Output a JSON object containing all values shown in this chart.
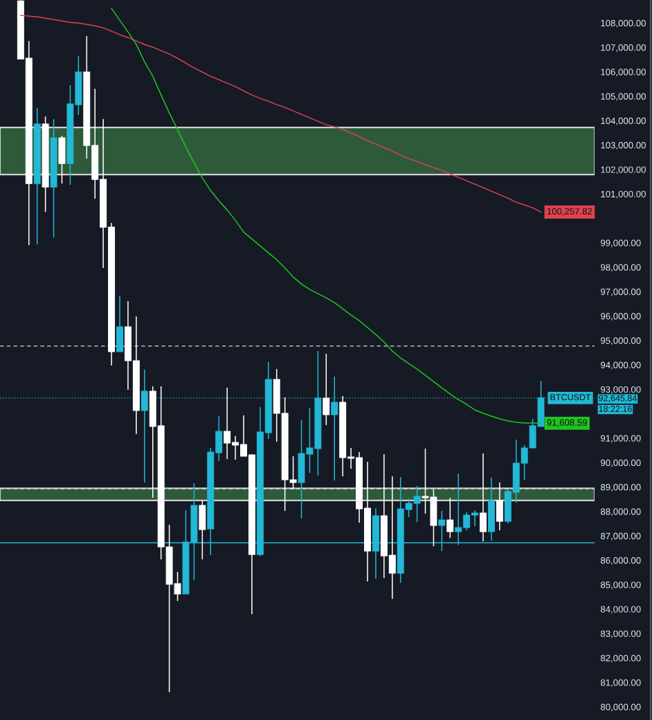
{
  "chart_data": {
    "type": "candlestick",
    "categories": [
      null,
      null,
      null,
      null,
      null,
      null,
      null,
      null,
      null,
      null,
      null,
      null,
      null,
      null,
      null,
      null,
      null,
      null,
      null,
      null,
      null,
      null,
      null,
      null,
      null,
      null,
      null,
      null,
      null,
      null,
      null,
      null,
      null,
      null,
      null,
      null,
      null,
      null,
      null,
      null,
      null,
      null,
      null,
      null,
      null,
      null,
      null,
      null,
      null,
      null,
      null,
      null,
      null,
      null,
      null,
      null,
      null,
      null,
      null,
      null,
      null,
      null,
      null,
      null
    ],
    "ohlc": [
      [
        108900,
        108930,
        106526,
        106526
      ],
      [
        106554,
        107263,
        98903,
        101425
      ],
      [
        101425,
        104514,
        98931,
        103862
      ],
      [
        103862,
        104174,
        100263,
        101283
      ],
      [
        101283,
        104061,
        99215,
        103295
      ],
      [
        103295,
        103380,
        101425,
        102247
      ],
      [
        102247,
        105449,
        101368,
        104684
      ],
      [
        104656,
        106640,
        104231,
        105988
      ],
      [
        105988,
        107462,
        102445,
        102984
      ],
      [
        102984,
        105307,
        100802,
        101595
      ],
      [
        101595,
        104061,
        97968,
        99640
      ],
      [
        99640,
        99810,
        93972,
        94539
      ],
      [
        94539,
        96806,
        94539,
        95559
      ],
      [
        95559,
        96607,
        92980,
        94170
      ],
      [
        94170,
        95984,
        91166,
        92130
      ],
      [
        92130,
        93802,
        89182,
        92923
      ],
      [
        92923,
        93122,
        88559,
        91478
      ],
      [
        91506,
        93122,
        86037,
        86547
      ],
      [
        86547,
        87453,
        80600,
        85016
      ],
      [
        85044,
        85526,
        84336,
        84620
      ],
      [
        84620,
        88048,
        84620,
        86745
      ],
      [
        86745,
        89154,
        85181,
        88247
      ],
      [
        88247,
        88445,
        86037,
        87255
      ],
      [
        87283,
        90599,
        86207,
        90429
      ],
      [
        90400,
        91903,
        90060,
        91279
      ],
      [
        91279,
        93065,
        90146,
        90797
      ],
      [
        90825,
        91081,
        90117,
        90713
      ],
      [
        90741,
        91931,
        90259,
        90259
      ],
      [
        90316,
        90344,
        83797,
        86235
      ],
      [
        86235,
        92271,
        86178,
        91251
      ],
      [
        91222,
        94113,
        90968,
        93405
      ],
      [
        93405,
        93830,
        90854,
        92016
      ],
      [
        92016,
        92668,
        88020,
        89296
      ],
      [
        89296,
        90259,
        88898,
        89182
      ],
      [
        89182,
        91733,
        87709,
        90372
      ],
      [
        90344,
        92243,
        89579,
        90599
      ],
      [
        90570,
        94567,
        89466,
        92640
      ],
      [
        92640,
        94453,
        91534,
        91960
      ],
      [
        91960,
        93518,
        89267,
        92470
      ],
      [
        92470,
        92725,
        89437,
        90203
      ],
      [
        90231,
        90599,
        89749,
        90174
      ],
      [
        90203,
        90429,
        87538,
        88105
      ],
      [
        88133,
        90032,
        85130,
        86377
      ],
      [
        86377,
        88133,
        85243,
        87822
      ],
      [
        87822,
        90344,
        85271,
        86178
      ],
      [
        86207,
        89437,
        84421,
        85470
      ],
      [
        85470,
        89409,
        85073,
        88105
      ],
      [
        88077,
        88530,
        87765,
        88332
      ],
      [
        88332,
        89041,
        87567,
        88616
      ],
      [
        88616,
        90571,
        87907,
        88559
      ],
      [
        88588,
        88898,
        86575,
        87425
      ],
      [
        87425,
        88020,
        86377,
        87652
      ],
      [
        87652,
        88559,
        86915,
        87170
      ],
      [
        87170,
        89551,
        86632,
        87340
      ],
      [
        87340,
        87963,
        87227,
        87850
      ],
      [
        87850,
        88048,
        87397,
        87935
      ],
      [
        87935,
        90372,
        86773,
        87170
      ],
      [
        87170,
        89381,
        86802,
        88445
      ],
      [
        88445,
        89183,
        87227,
        87595
      ],
      [
        87595,
        88899,
        87510,
        88814
      ],
      [
        88786,
        90939,
        88360,
        89976
      ],
      [
        89976,
        90712,
        89296,
        90599
      ],
      [
        90599,
        91790,
        90599,
        91506
      ],
      [
        91478,
        93348,
        91478,
        92645.84
      ]
    ],
    "colors": [
      "#ffffff",
      "#ffffff",
      "#22b8d6",
      "#ffffff",
      "#22b8d6",
      "#ffffff",
      "#22b8d6",
      "#22b8d6",
      "#ffffff",
      "#ffffff",
      "#ffffff",
      "#ffffff",
      "#22b8d6",
      "#ffffff",
      "#ffffff",
      "#22b8d6",
      "#ffffff",
      "#ffffff",
      "#ffffff",
      "#ffffff",
      "#22b8d6",
      "#22b8d6",
      "#ffffff",
      "#22b8d6",
      "#22b8d6",
      "#ffffff",
      "#ffffff",
      "#ffffff",
      "#ffffff",
      "#22b8d6",
      "#22b8d6",
      "#ffffff",
      "#ffffff",
      "#ffffff",
      "#22b8d6",
      "#22b8d6",
      "#22b8d6",
      "#ffffff",
      "#22b8d6",
      "#ffffff",
      "#ffffff",
      "#ffffff",
      "#ffffff",
      "#22b8d6",
      "#ffffff",
      "#ffffff",
      "#22b8d6",
      "#22b8d6",
      "#22b8d6",
      "#ffffff",
      "#ffffff",
      "#22b8d6",
      "#ffffff",
      "#22b8d6",
      "#22b8d6",
      "#22b8d6",
      "#ffffff",
      "#22b8d6",
      "#ffffff",
      "#22b8d6",
      "#22b8d6",
      "#22b8d6",
      "#22b8d6",
      "#22b8d6"
    ],
    "series": [
      {
        "type": "line",
        "color": "#e0434f",
        "values": [
          108312,
          108283,
          108255,
          108198,
          108142,
          108085,
          108028,
          108000,
          107943,
          107887,
          107802,
          107660,
          107518,
          107405,
          107263,
          107121,
          107008,
          106866,
          106725,
          106555,
          106356,
          106158,
          105988,
          105818,
          105676,
          105534,
          105393,
          105223,
          105052,
          104911,
          104798,
          104656,
          104543,
          104401,
          104259,
          104117,
          103976,
          103834,
          103749,
          103636,
          103494,
          103352,
          103182,
          103040,
          102899,
          102757,
          102587,
          102445,
          102332,
          102190,
          102077,
          101964,
          101822,
          101680,
          101538,
          101397,
          101255,
          101113,
          100972,
          100830,
          100660,
          100547,
          100433,
          100257.82
        ],
        "value_labels": [
          null,
          null,
          null,
          null,
          null,
          null,
          null,
          null,
          null,
          null,
          null,
          null,
          null,
          null,
          null,
          null,
          null,
          null,
          null,
          null,
          null,
          null,
          null,
          null,
          null,
          null,
          null,
          null,
          null,
          null,
          null,
          null,
          null,
          null,
          null,
          null,
          null,
          null,
          null,
          null,
          null,
          null,
          null,
          null,
          null,
          null,
          null,
          null,
          null,
          null,
          null,
          null,
          null,
          null,
          null,
          null,
          null,
          null,
          null,
          null,
          null,
          null,
          null,
          "100,257.82"
        ]
      },
      {
        "type": "line",
        "color": "#1fc41f",
        "values": [
          null,
          null,
          null,
          null,
          null,
          null,
          null,
          null,
          null,
          null,
          null,
          108595,
          108113,
          107632,
          107121,
          106413,
          105818,
          105052,
          104316,
          103636,
          102927,
          102275,
          101652,
          101142,
          100717,
          100348,
          99923,
          99441,
          99158,
          98874,
          98591,
          98308,
          97968,
          97600,
          97316,
          97089,
          96919,
          96749,
          96551,
          96296,
          96041,
          95814,
          95531,
          95247,
          94936,
          94567,
          94284,
          94057,
          93830,
          93575,
          93320,
          93065,
          92810,
          92583,
          92385,
          92158,
          92016,
          91903,
          91790,
          91705,
          91648,
          91620,
          91620,
          91608.59
        ],
        "value_labels": [
          null,
          null,
          null,
          null,
          null,
          null,
          null,
          null,
          null,
          null,
          null,
          null,
          null,
          null,
          null,
          null,
          null,
          null,
          null,
          null,
          null,
          null,
          null,
          null,
          null,
          null,
          null,
          null,
          null,
          null,
          null,
          null,
          null,
          null,
          null,
          null,
          null,
          null,
          null,
          null,
          null,
          null,
          null,
          null,
          null,
          null,
          null,
          null,
          null,
          null,
          null,
          null,
          null,
          null,
          null,
          null,
          null,
          null,
          null,
          null,
          null,
          null,
          null,
          "91,608.59"
        ]
      }
    ],
    "ylim": [
      79460,
      108940
    ],
    "yticks": [
      {
        "value": 80000,
        "label": "80,000.00"
      },
      {
        "value": 81000,
        "label": "81,000.00"
      },
      {
        "value": 82000,
        "label": "82,000.00"
      },
      {
        "value": 83000,
        "label": "83,000.00"
      },
      {
        "value": 84000,
        "label": "84,000.00"
      },
      {
        "value": 85000,
        "label": "85,000.00"
      },
      {
        "value": 86000,
        "label": "86,000.00"
      },
      {
        "value": 87000,
        "label": "87,000.00"
      },
      {
        "value": 88000,
        "label": "88,000.00"
      },
      {
        "value": 89000,
        "label": "89,000.00"
      },
      {
        "value": 90000,
        "label": "90,000.00"
      },
      {
        "value": 91000,
        "label": "91,000.00"
      },
      {
        "value": 93000,
        "label": "93,000.00"
      },
      {
        "value": 94000,
        "label": "94,000.00"
      },
      {
        "value": 95000,
        "label": "95,000.00"
      },
      {
        "value": 96000,
        "label": "96,000.00"
      },
      {
        "value": 97000,
        "label": "97,000.00"
      },
      {
        "value": 98000,
        "label": "98,000.00"
      },
      {
        "value": 99000,
        "label": "99,000.00"
      },
      {
        "value": 101000,
        "label": "101,000.00"
      },
      {
        "value": 102000,
        "label": "102,000.00"
      },
      {
        "value": 103000,
        "label": "103,000.00"
      },
      {
        "value": 104000,
        "label": "104,000.00"
      },
      {
        "value": 105000,
        "label": "105,000.00"
      },
      {
        "value": 106000,
        "label": "106,000.00"
      },
      {
        "value": 107000,
        "label": "107,000.00"
      },
      {
        "value": 108000,
        "label": "108,000.00"
      }
    ],
    "tick_labels": "y",
    "bands": [
      {
        "axis": "y",
        "from": 101794,
        "to": 103721,
        "color": "#2e5a3a"
      },
      {
        "axis": "y",
        "from": 88450,
        "to": 88950,
        "color": "#2e5a3a"
      }
    ],
    "ref_lines": [
      {
        "axis": "y",
        "value": 94770,
        "color": "#d8d8d8",
        "line_style": "dashed"
      },
      {
        "axis": "y",
        "value": 88927,
        "color": "#d8d8d8",
        "line_style": "dashed"
      },
      {
        "axis": "y",
        "value": 86717,
        "color": "#22b8d6",
        "line_style": "solid"
      },
      {
        "axis": "y",
        "value": 92645.84,
        "color": "#22b8d6",
        "line_style": "dotted",
        "label": "92,645.84"
      }
    ],
    "annotations": [
      {
        "text": "BTCUSDT",
        "y": 92645.84
      },
      "18:22:16"
    ]
  }
}
